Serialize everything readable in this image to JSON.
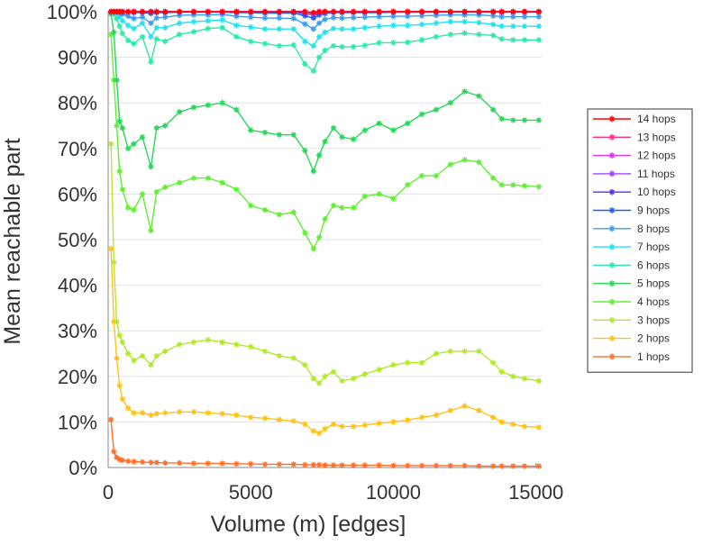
{
  "chart_data": {
    "type": "line",
    "xlabel": "Volume (m) [edges]",
    "ylabel": "Mean reachable part",
    "xlim": [
      0,
      15200
    ],
    "ylim": [
      0,
      100
    ],
    "x_ticks": [
      {
        "value": 0,
        "label": "0"
      },
      {
        "value": 5000,
        "label": "5000"
      },
      {
        "value": 10000,
        "label": "10000"
      },
      {
        "value": 15000,
        "label": "15000"
      }
    ],
    "y_ticks": [
      {
        "value": 0,
        "label": "0%"
      },
      {
        "value": 10,
        "label": "10%"
      },
      {
        "value": 20,
        "label": "20%"
      },
      {
        "value": 30,
        "label": "30%"
      },
      {
        "value": 40,
        "label": "40%"
      },
      {
        "value": 50,
        "label": "50%"
      },
      {
        "value": 60,
        "label": "60%"
      },
      {
        "value": 70,
        "label": "70%"
      },
      {
        "value": 80,
        "label": "80%"
      },
      {
        "value": 90,
        "label": "90%"
      },
      {
        "value": 100,
        "label": "100%"
      }
    ],
    "grid": "horizontal",
    "legend_position": "right",
    "x": [
      100,
      200,
      300,
      400,
      500,
      700,
      900,
      1200,
      1500,
      1700,
      2000,
      2500,
      3000,
      3500,
      4000,
      4500,
      5000,
      5500,
      6000,
      6500,
      6900,
      7200,
      7400,
      7600,
      7900,
      8200,
      8600,
      9000,
      9500,
      10000,
      10500,
      11000,
      11500,
      12000,
      12500,
      13000,
      13500,
      13800,
      14200,
      14600,
      15100
    ],
    "series": [
      {
        "name": "14 hops",
        "color": "#ff0000",
        "values": [
          100,
          100,
          100,
          100,
          100,
          100,
          100,
          100,
          100,
          100,
          100,
          100,
          100,
          100,
          100,
          100,
          100,
          100,
          100,
          100,
          100,
          99.8,
          100,
          100,
          100,
          100,
          100,
          100,
          100,
          100,
          100,
          100,
          100,
          100,
          100,
          100,
          100,
          100,
          100,
          100,
          100
        ]
      },
      {
        "name": "13 hops",
        "color": "#ff2f7f",
        "values": [
          100,
          100,
          100,
          100,
          100,
          100,
          100,
          100,
          100,
          100,
          100,
          100,
          100,
          100,
          100,
          100,
          100,
          100,
          100,
          100,
          100,
          99.8,
          100,
          100,
          100,
          100,
          100,
          100,
          100,
          100,
          100,
          100,
          100,
          100,
          100,
          100,
          100,
          100,
          100,
          100,
          100
        ]
      },
      {
        "name": "12 hops",
        "color": "#e033e0",
        "values": [
          100,
          100,
          100,
          100,
          100,
          100,
          100,
          100,
          100,
          100,
          100,
          100,
          100,
          100,
          100,
          100,
          100,
          100,
          100,
          100,
          100,
          99.7,
          100,
          100,
          100,
          100,
          100,
          100,
          100,
          100,
          100,
          100,
          100,
          100,
          100,
          100,
          100,
          100,
          100,
          100,
          100
        ]
      },
      {
        "name": "11 hops",
        "color": "#a040ff",
        "values": [
          100,
          100,
          100,
          100,
          100,
          100,
          100,
          100,
          100,
          100,
          100,
          100,
          100,
          100,
          100,
          100,
          100,
          100,
          100,
          100,
          100,
          99.6,
          100,
          100,
          100,
          100,
          100,
          100,
          100,
          100,
          100,
          100,
          100,
          100,
          100,
          100,
          100,
          100,
          100,
          100,
          100
        ]
      },
      {
        "name": "10 hops",
        "color": "#5a2fe8",
        "values": [
          100,
          100,
          100,
          100,
          100,
          100,
          100,
          100,
          100,
          100,
          100,
          100,
          100,
          100,
          100,
          100,
          100,
          100,
          100,
          100,
          99.5,
          99.4,
          99.8,
          100,
          100,
          100,
          100,
          100,
          100,
          100,
          100,
          100,
          100,
          100,
          100,
          100,
          100,
          100,
          100,
          100,
          100
        ]
      },
      {
        "name": "9 hops",
        "color": "#1e5ef0",
        "values": [
          100,
          100,
          100,
          100,
          99.9,
          99.9,
          99.8,
          99.8,
          99.6,
          99.8,
          99.8,
          99.9,
          99.9,
          99.9,
          99.9,
          99.8,
          99.8,
          99.7,
          99.7,
          99.7,
          99.1,
          98.6,
          99.3,
          99.6,
          99.8,
          99.8,
          99.8,
          99.8,
          99.8,
          99.9,
          99.9,
          99.9,
          99.9,
          99.9,
          99.9,
          99.9,
          99.9,
          99.9,
          99.9,
          99.9,
          99.9
        ]
      },
      {
        "name": "8 hops",
        "color": "#3a9cf0",
        "values": [
          100,
          100,
          100,
          99.8,
          99.5,
          99,
          98.5,
          98.8,
          97.5,
          98.6,
          98.8,
          99.2,
          99.3,
          99.3,
          99.4,
          99,
          98.8,
          98.6,
          98.6,
          98.5,
          97.3,
          96.2,
          97.5,
          98.3,
          98.7,
          98.6,
          98.7,
          98.8,
          98.9,
          99,
          99,
          99.1,
          99.2,
          99.3,
          99.3,
          99.3,
          99.1,
          98.9,
          98.9,
          98.9,
          98.9
        ]
      },
      {
        "name": "7 hops",
        "color": "#22e2ee",
        "values": [
          100,
          100,
          99.7,
          99,
          98,
          97,
          96.3,
          97.5,
          94.5,
          96.5,
          96.5,
          97.5,
          97.8,
          98,
          98.2,
          97,
          96.6,
          96.2,
          96.2,
          96.2,
          93.5,
          92.5,
          94.5,
          95.5,
          96.3,
          96.2,
          96.2,
          96.5,
          96.8,
          97,
          97,
          97.2,
          97.5,
          97.8,
          97.8,
          97.6,
          97.2,
          96.8,
          96.8,
          96.8,
          96.8
        ]
      },
      {
        "name": "6 hops",
        "color": "#2de8a8",
        "values": [
          100,
          99.5,
          98.5,
          96.8,
          95.2,
          93.7,
          93,
          94.5,
          89,
          94,
          93.5,
          95,
          95.6,
          96.3,
          96.5,
          94.5,
          93.5,
          93,
          92.5,
          92.7,
          88.5,
          87,
          90,
          91.5,
          92.5,
          92.3,
          92.3,
          92.6,
          93.2,
          93.2,
          93.3,
          93.8,
          94.5,
          95,
          95.3,
          95,
          94.8,
          94,
          93.8,
          93.8,
          93.8
        ]
      },
      {
        "name": "5 hops",
        "color": "#2ad65a",
        "values": [
          99.5,
          95.5,
          85,
          76,
          74.5,
          70,
          71,
          72.5,
          66,
          74.5,
          75,
          78,
          79,
          79.5,
          80,
          78.5,
          74,
          73.5,
          73,
          73,
          69.5,
          65,
          68.5,
          71.5,
          74.5,
          72.5,
          72,
          74,
          75.5,
          74,
          75.5,
          77.5,
          78.5,
          80,
          82.5,
          81.5,
          78.5,
          76.5,
          76.2,
          76.2,
          76.2
        ]
      },
      {
        "name": "4 hops",
        "color": "#62ee36",
        "values": [
          95,
          85,
          75,
          65,
          61,
          57,
          56.5,
          60,
          52,
          60.5,
          61.5,
          62.5,
          63.5,
          63.5,
          62.5,
          61,
          57.5,
          56.5,
          55.5,
          56,
          51.5,
          48,
          50.5,
          54.5,
          57.5,
          57,
          57,
          59.5,
          60,
          59,
          62,
          64,
          64,
          66.5,
          67.5,
          67,
          63.5,
          62,
          62,
          61.8,
          61.6
        ]
      },
      {
        "name": "3 hops",
        "color": "#b2e830",
        "values": [
          71,
          45,
          32,
          29,
          27.5,
          25,
          23.5,
          24.5,
          22.5,
          24.5,
          25.5,
          27,
          27.5,
          28,
          27.5,
          27,
          26.5,
          25.5,
          24.5,
          24,
          22.5,
          19.5,
          18.5,
          20,
          21,
          19,
          19.5,
          20.5,
          21.5,
          22.5,
          23,
          23,
          25,
          25.5,
          25.5,
          25.5,
          23,
          21,
          20,
          19.5,
          19
        ]
      },
      {
        "name": "2 hops",
        "color": "#ffc21a",
        "values": [
          48,
          32,
          24,
          18,
          15,
          13,
          12,
          12,
          11.5,
          11.8,
          12,
          12.2,
          12.2,
          12,
          11.8,
          11.5,
          11,
          10.8,
          10.5,
          10.2,
          9.5,
          8,
          7.5,
          8.5,
          9.5,
          9,
          9,
          9.3,
          9.7,
          10,
          10.4,
          11,
          11.5,
          12.5,
          13.5,
          12.5,
          11,
          10,
          9.5,
          9,
          8.8
        ]
      },
      {
        "name": "1 hops",
        "color": "#ff6f2a",
        "values": [
          10.5,
          3.5,
          2.2,
          1.8,
          1.6,
          1.4,
          1.3,
          1.2,
          1.1,
          1.1,
          1,
          1,
          0.9,
          0.9,
          0.9,
          0.8,
          0.8,
          0.7,
          0.7,
          0.7,
          0.6,
          0.6,
          0.6,
          0.5,
          0.5,
          0.5,
          0.5,
          0.5,
          0.5,
          0.4,
          0.4,
          0.4,
          0.4,
          0.4,
          0.4,
          0.3,
          0.3,
          0.3,
          0.3,
          0.3,
          0.3
        ]
      }
    ]
  }
}
